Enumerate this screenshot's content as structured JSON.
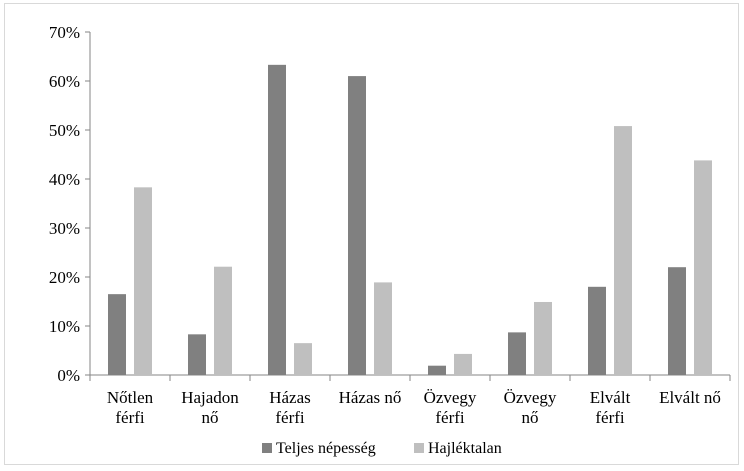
{
  "chart_data": {
    "type": "bar",
    "categories": [
      [
        "Nőtlen",
        "férfi"
      ],
      [
        "Hajadon",
        "nő"
      ],
      [
        "Házas",
        "férfi"
      ],
      [
        "Házas nő"
      ],
      [
        "Özvegy",
        "férfi"
      ],
      [
        "Özvegy",
        "nő"
      ],
      [
        "Elvált",
        "férfi"
      ],
      [
        "Elvált nő"
      ]
    ],
    "series": [
      {
        "name": "Teljes népesség",
        "color": "#808080",
        "values": [
          16.5,
          8.3,
          63.3,
          61.0,
          1.9,
          8.7,
          18.0,
          22.0
        ]
      },
      {
        "name": "Hajléktalan",
        "color": "#bfbfbf",
        "values": [
          38.3,
          22.1,
          6.5,
          18.9,
          4.3,
          14.9,
          50.8,
          43.8
        ]
      }
    ],
    "ylim": [
      0,
      70
    ],
    "yticks": [
      0,
      10,
      20,
      30,
      40,
      50,
      60,
      70
    ],
    "y_tick_labels": [
      "0%",
      "10%",
      "20%",
      "30%",
      "40%",
      "50%",
      "60%",
      "70%"
    ],
    "grid": false,
    "legend": "bottom",
    "title": "",
    "xlabel": "",
    "ylabel": ""
  }
}
